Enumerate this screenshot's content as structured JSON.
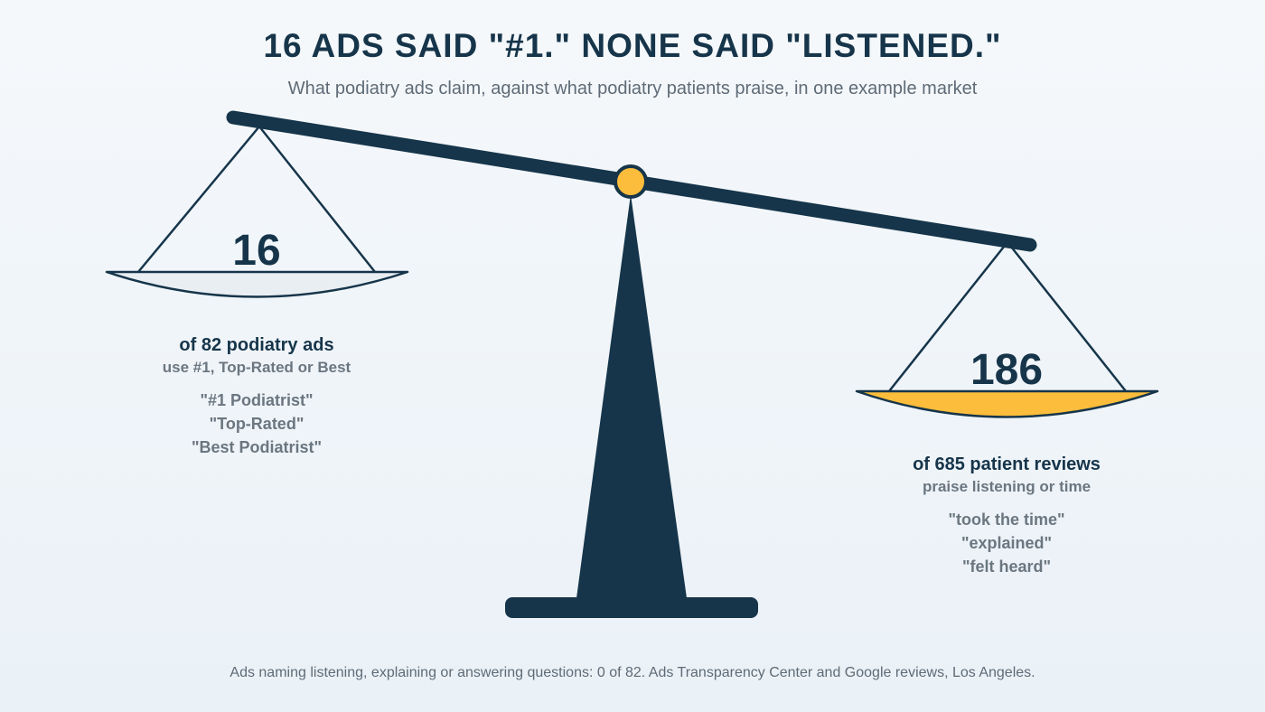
{
  "header": {
    "title": "16 ADS SAID \"#1.\" NONE SAID \"LISTENED.\"",
    "subtitle": "What podiatry ads claim, against what podiatry patients praise, in one example market"
  },
  "colors": {
    "navy": "#16354a",
    "accent": "#fbbd3b",
    "pan_left": "#e9eef2",
    "muted_text": "#6b7680"
  },
  "left_pan": {
    "count": "16",
    "label": "of 82 podiatry ads",
    "sublabel": "use #1, Top-Rated or Best",
    "quotes": [
      "\"#1 Podiatrist\"",
      "\"Top-Rated\"",
      "\"Best Podiatrist\""
    ]
  },
  "right_pan": {
    "count": "186",
    "label": "of 685 patient reviews",
    "sublabel": "praise listening or time",
    "quotes": [
      "\"took the time\"",
      "\"explained\"",
      "\"felt heard\""
    ]
  },
  "footnote": "Ads naming listening, explaining or answering questions: 0 of 82. Ads Transparency Center and Google reviews, Los Angeles."
}
